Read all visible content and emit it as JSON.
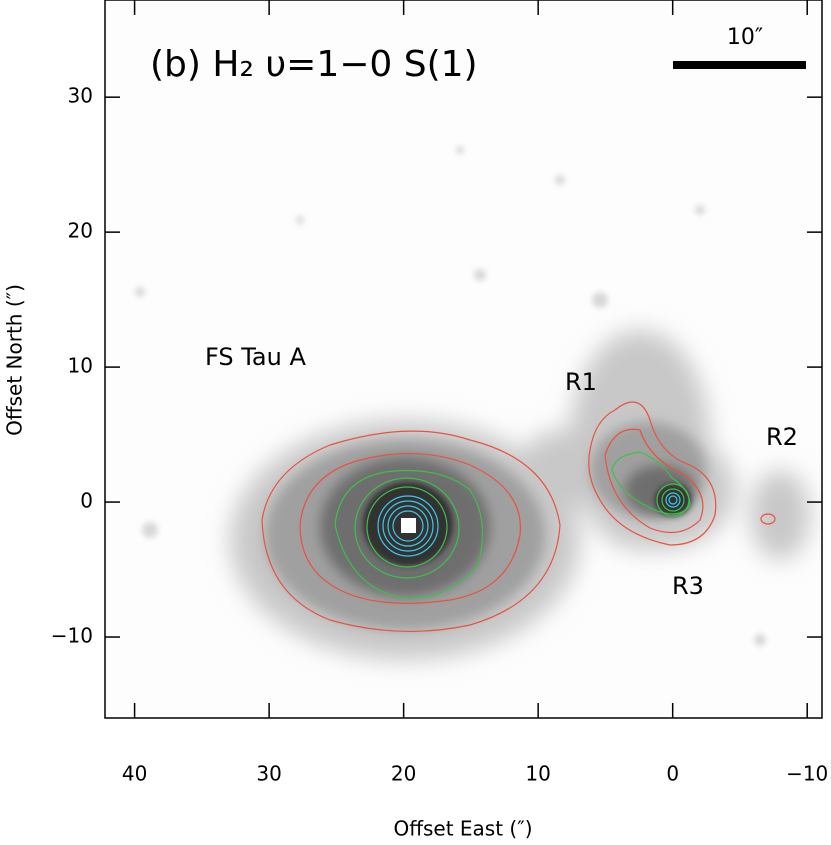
{
  "chart_data": {
    "type": "image",
    "title": "(b) H₂ υ=1−0 S(1)",
    "scale_bar_label": "10″",
    "xlabel": "Offset East (″)",
    "ylabel": "Offset North (″)",
    "xlim": [
      42.2,
      -11.1
    ],
    "ylim": [
      -16.0,
      37.2
    ],
    "xticks": [
      40,
      30,
      20,
      10,
      0,
      {
        "value": -10,
        "label": "−10"
      }
    ],
    "yticks": [
      {
        "value": -10,
        "label": "−10"
      },
      0,
      10,
      20,
      30
    ],
    "annotations": [
      "FS Tau A",
      "R1",
      "R2",
      "R3"
    ]
  }
}
